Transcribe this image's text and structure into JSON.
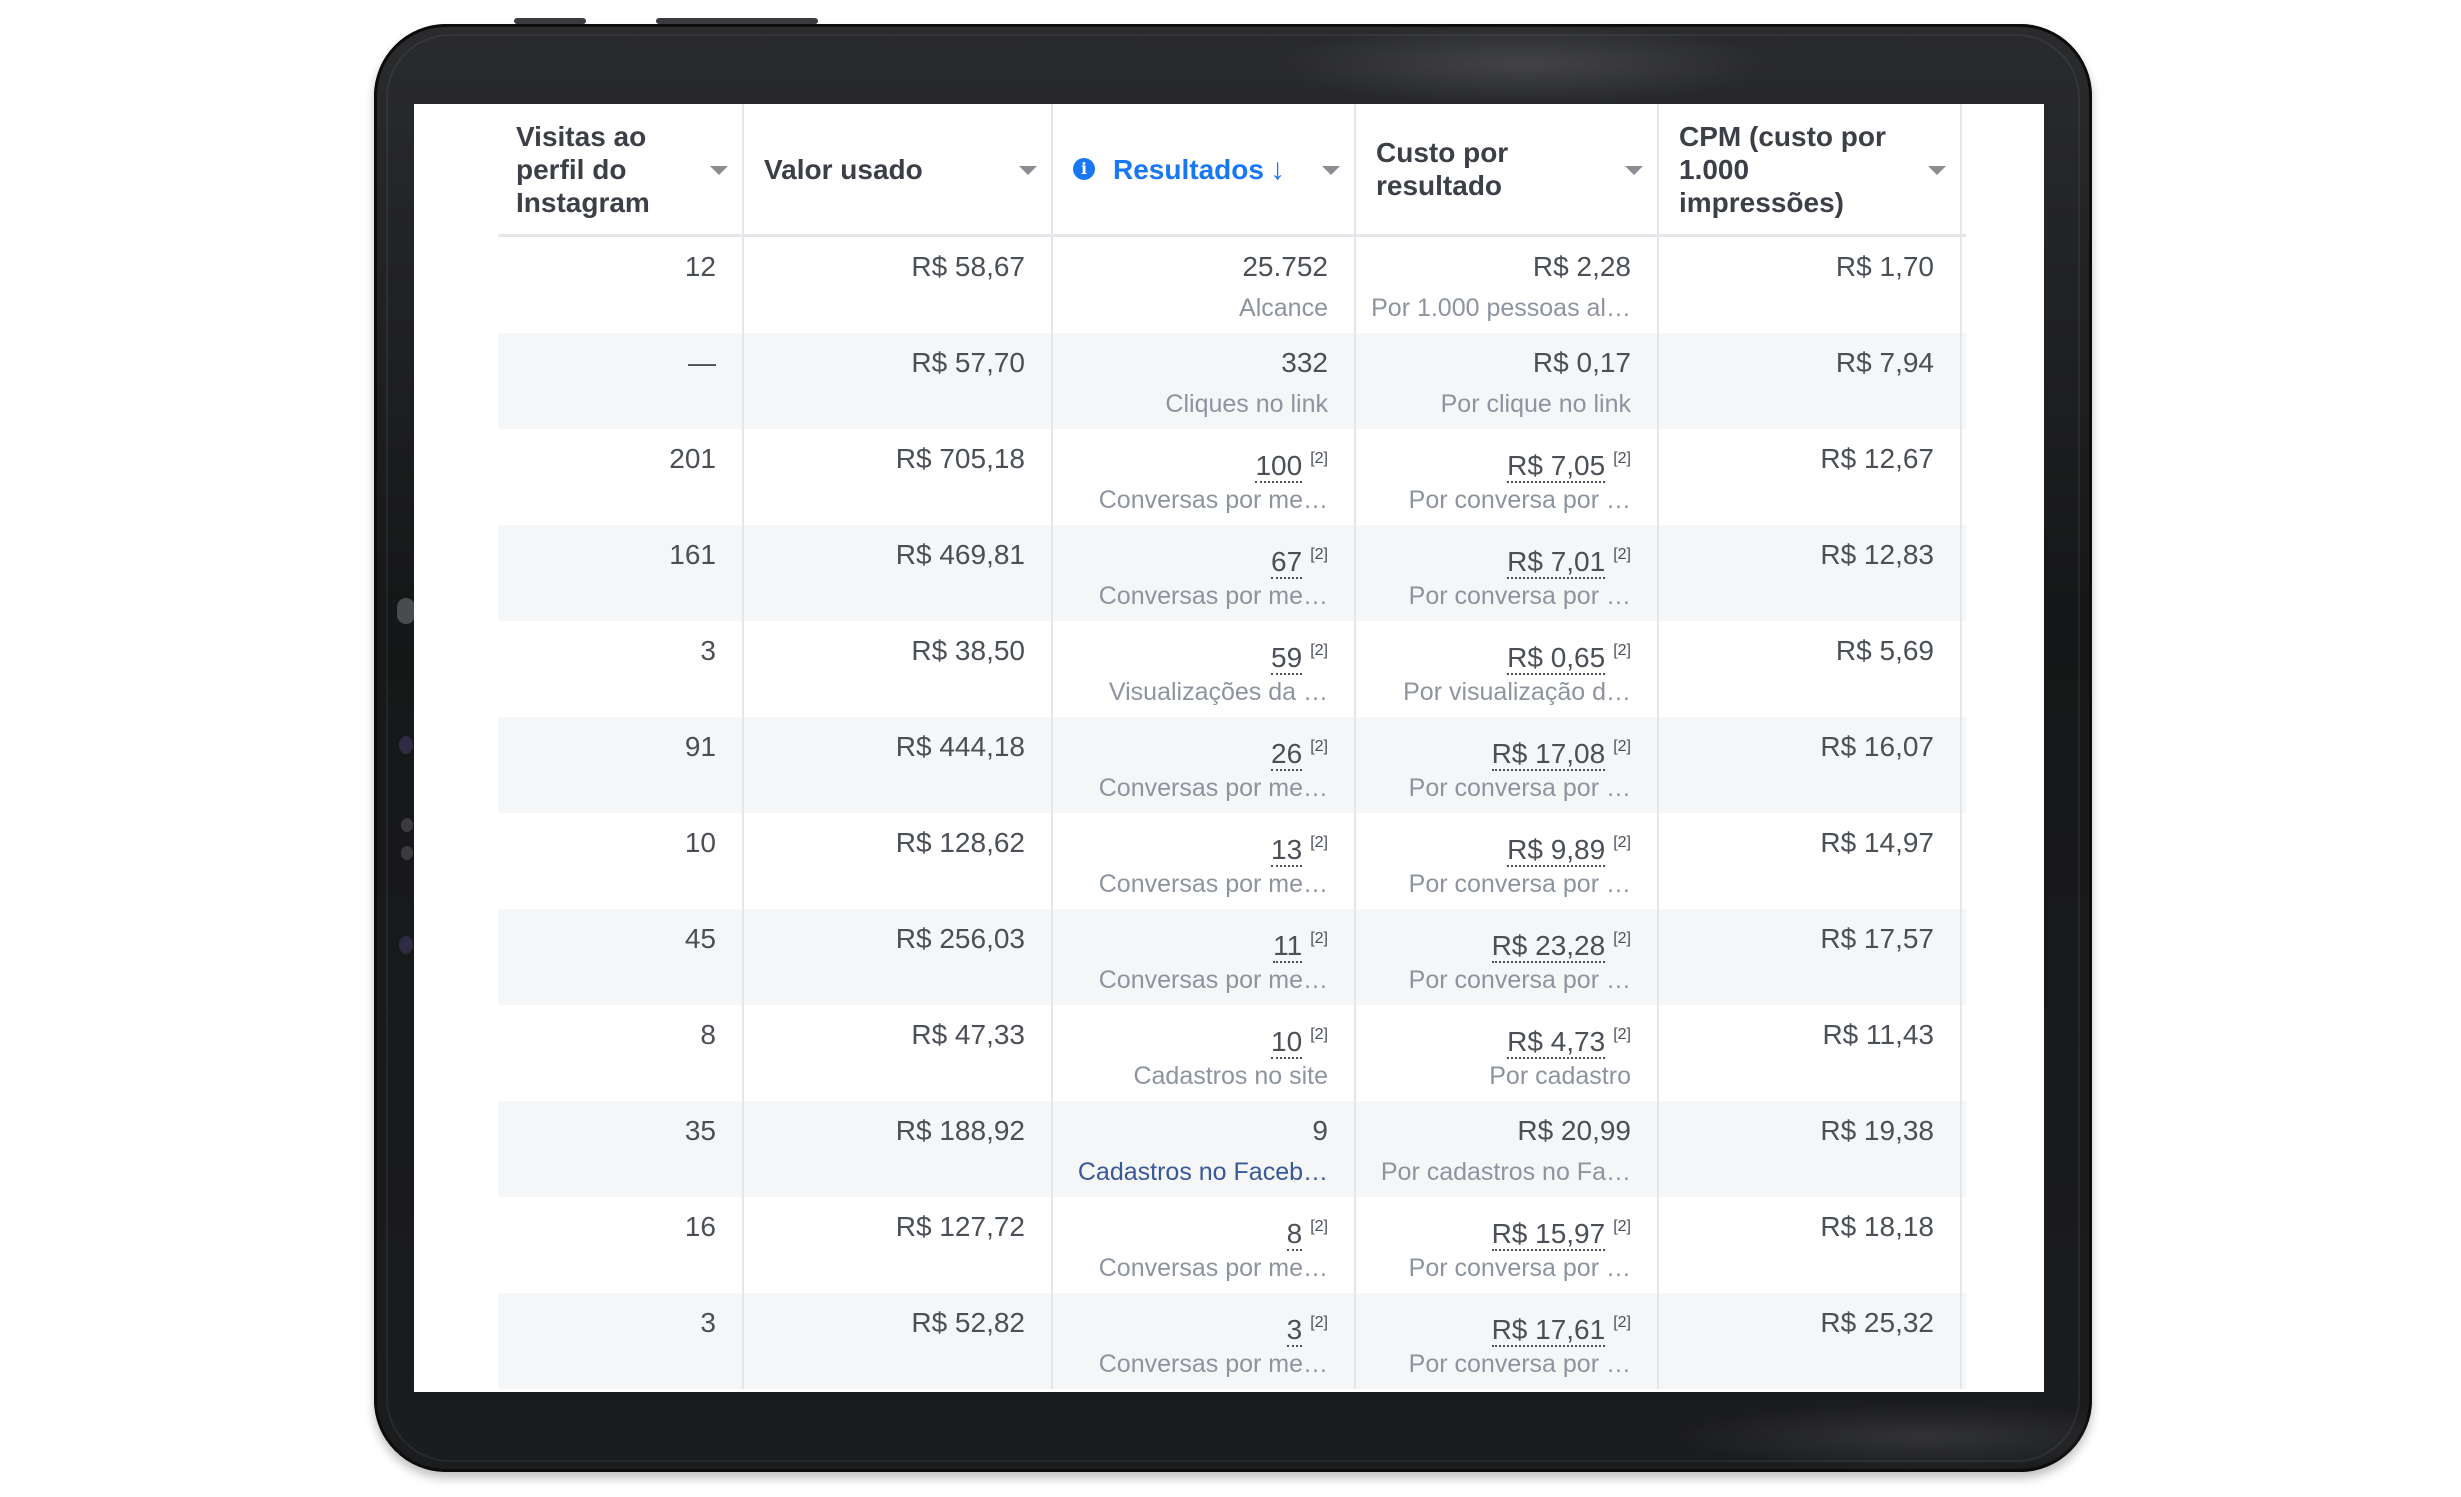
{
  "table": {
    "columns": [
      {
        "label": "Visitas ao perfil do Instagram",
        "key": "visitas"
      },
      {
        "label": "Valor usado",
        "key": "valor"
      },
      {
        "label": "Resultados",
        "key": "resultados",
        "active": true,
        "sort_icon": "arrow-down-icon",
        "info_icon": "info-icon"
      },
      {
        "label": "Custo por resultado",
        "key": "custo"
      },
      {
        "label": "CPM (custo por 1.000 impressões)",
        "key": "cpm"
      }
    ],
    "rows": [
      {
        "visitas": "12",
        "valor": "R$ 58,67",
        "resultados": "25.752",
        "resultados_sub": "Alcance",
        "resultados_note": "",
        "custo": "R$ 2,28",
        "custo_sub": "Por 1.000 pessoas al…",
        "custo_note": "",
        "cpm": "R$ 1,70"
      },
      {
        "visitas": "—",
        "valor": "R$ 57,70",
        "resultados": "332",
        "resultados_sub": "Cliques no link",
        "resultados_note": "",
        "custo": "R$ 0,17",
        "custo_sub": "Por clique no link",
        "custo_note": "",
        "cpm": "R$ 7,94"
      },
      {
        "visitas": "201",
        "valor": "R$ 705,18",
        "resultados": "100",
        "resultados_sub": "Conversas por me…",
        "resultados_note": "[2]",
        "custo": "R$ 7,05",
        "custo_sub": "Por conversa por …",
        "custo_note": "[2]",
        "cpm": "R$ 12,67"
      },
      {
        "visitas": "161",
        "valor": "R$ 469,81",
        "resultados": "67",
        "resultados_sub": "Conversas por me…",
        "resultados_note": "[2]",
        "custo": "R$ 7,01",
        "custo_sub": "Por conversa por …",
        "custo_note": "[2]",
        "cpm": "R$ 12,83"
      },
      {
        "visitas": "3",
        "valor": "R$ 38,50",
        "resultados": "59",
        "resultados_sub": "Visualizações da …",
        "resultados_note": "[2]",
        "custo": "R$ 0,65",
        "custo_sub": "Por visualização d…",
        "custo_note": "[2]",
        "cpm": "R$ 5,69"
      },
      {
        "visitas": "91",
        "valor": "R$ 444,18",
        "resultados": "26",
        "resultados_sub": "Conversas por me…",
        "resultados_note": "[2]",
        "custo": "R$ 17,08",
        "custo_sub": "Por conversa por …",
        "custo_note": "[2]",
        "cpm": "R$ 16,07"
      },
      {
        "visitas": "10",
        "valor": "R$ 128,62",
        "resultados": "13",
        "resultados_sub": "Conversas por me…",
        "resultados_note": "[2]",
        "custo": "R$ 9,89",
        "custo_sub": "Por conversa por …",
        "custo_note": "[2]",
        "cpm": "R$ 14,97"
      },
      {
        "visitas": "45",
        "valor": "R$ 256,03",
        "resultados": "11",
        "resultados_sub": "Conversas por me…",
        "resultados_note": "[2]",
        "custo": "R$ 23,28",
        "custo_sub": "Por conversa por …",
        "custo_note": "[2]",
        "cpm": "R$ 17,57"
      },
      {
        "visitas": "8",
        "valor": "R$ 47,33",
        "resultados": "10",
        "resultados_sub": "Cadastros no site",
        "resultados_note": "[2]",
        "custo": "R$ 4,73",
        "custo_sub": "Por cadastro",
        "custo_note": "[2]",
        "cpm": "R$ 11,43"
      },
      {
        "visitas": "35",
        "valor": "R$ 188,92",
        "resultados": "9",
        "resultados_sub": "Cadastros no Faceb…",
        "resultados_sub_link": true,
        "resultados_note": "",
        "custo": "R$ 20,99",
        "custo_sub": "Por cadastros no Fa…",
        "custo_note": "",
        "cpm": "R$ 19,38"
      },
      {
        "visitas": "16",
        "valor": "R$ 127,72",
        "resultados": "8",
        "resultados_sub": "Conversas por me…",
        "resultados_note": "[2]",
        "custo": "R$ 15,97",
        "custo_sub": "Por conversa por …",
        "custo_note": "[2]",
        "cpm": "R$ 18,18"
      },
      {
        "visitas": "3",
        "valor": "R$ 52,82",
        "resultados": "3",
        "resultados_sub": "Conversas por me…",
        "resultados_note": "[2]",
        "custo": "R$ 17,61",
        "custo_sub": "Por conversa por …",
        "custo_note": "[2]",
        "cpm": "R$ 25,32"
      }
    ]
  },
  "colors": {
    "accent": "#1877f2",
    "text": "#4b4f56",
    "subtext": "#8d949e",
    "link": "#385898",
    "alt_row": "#f5f6f7",
    "border": "#e4e6ea"
  }
}
